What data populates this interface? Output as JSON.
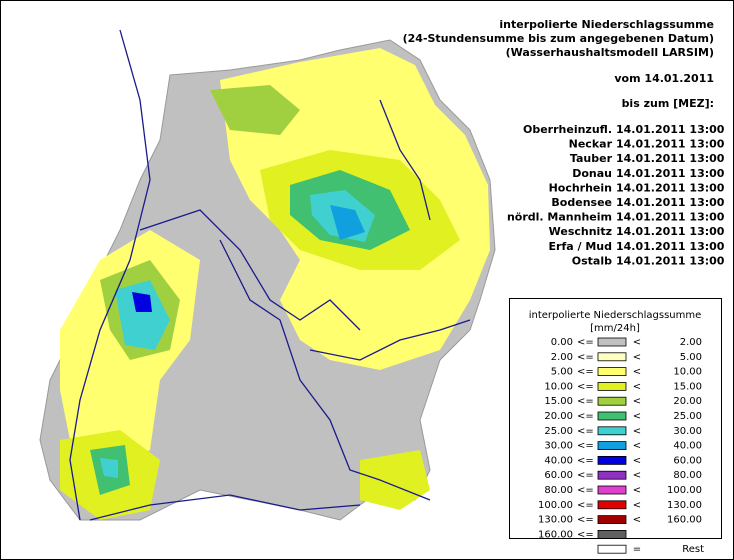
{
  "header": {
    "title_lines": [
      "interpolierte Niederschlagssumme",
      "(24-Stundensumme bis zum angegebenen Datum)",
      "(Wasserhaushaltsmodell LARSIM)"
    ],
    "date": "vom 14.01.2011",
    "until": "bis zum [MEZ]:"
  },
  "stations": [
    {
      "name": "Oberrheinzufl.",
      "time": "14.01.2011 13:00"
    },
    {
      "name": "Neckar",
      "time": "14.01.2011 13:00"
    },
    {
      "name": "Tauber",
      "time": "14.01.2011 13:00"
    },
    {
      "name": "Donau",
      "time": "14.01.2011 13:00"
    },
    {
      "name": "Hochrhein",
      "time": "14.01.2011 13:00"
    },
    {
      "name": "Bodensee",
      "time": "14.01.2011 13:00"
    },
    {
      "name": "nördl. Mannheim",
      "time": "14.01.2011 13:00"
    },
    {
      "name": "Weschnitz",
      "time": "14.01.2011 13:00"
    },
    {
      "name": "Erfa / Mud",
      "time": "14.01.2011 13:00"
    },
    {
      "name": "Ostalb",
      "time": "14.01.2011 13:00"
    }
  ],
  "legend": {
    "title": "interpolierte Niederschlagssumme",
    "unit": "[mm/24h]",
    "rows": [
      {
        "lower": "0.00",
        "op1": "<=",
        "color": "#c0c0c0",
        "op2": "<",
        "upper": "2.00"
      },
      {
        "lower": "2.00",
        "op1": "<=",
        "color": "#ffffc0",
        "op2": "<",
        "upper": "5.00"
      },
      {
        "lower": "5.00",
        "op1": "<=",
        "color": "#ffff70",
        "op2": "<",
        "upper": "10.00"
      },
      {
        "lower": "10.00",
        "op1": "<=",
        "color": "#e0f020",
        "op2": "<",
        "upper": "15.00"
      },
      {
        "lower": "15.00",
        "op1": "<=",
        "color": "#a0d040",
        "op2": "<",
        "upper": "20.00"
      },
      {
        "lower": "20.00",
        "op1": "<=",
        "color": "#40c070",
        "op2": "<",
        "upper": "25.00"
      },
      {
        "lower": "25.00",
        "op1": "<=",
        "color": "#40d0d0",
        "op2": "<",
        "upper": "30.00"
      },
      {
        "lower": "30.00",
        "op1": "<=",
        "color": "#10a0e0",
        "op2": "<",
        "upper": "40.00"
      },
      {
        "lower": "40.00",
        "op1": "<=",
        "color": "#0000e0",
        "op2": "<",
        "upper": "60.00"
      },
      {
        "lower": "60.00",
        "op1": "<=",
        "color": "#9030c0",
        "op2": "<",
        "upper": "80.00"
      },
      {
        "lower": "80.00",
        "op1": "<=",
        "color": "#e040d0",
        "op2": "<",
        "upper": "100.00"
      },
      {
        "lower": "100.00",
        "op1": "<=",
        "color": "#e00000",
        "op2": "<",
        "upper": "130.00"
      },
      {
        "lower": "130.00",
        "op1": "<=",
        "color": "#a00000",
        "op2": "<",
        "upper": "160.00"
      },
      {
        "lower": "160.00",
        "op1": "<=",
        "color": "#606060"
      }
    ],
    "rest": {
      "color": "#ffffff",
      "op": "=",
      "label": "Rest"
    }
  }
}
